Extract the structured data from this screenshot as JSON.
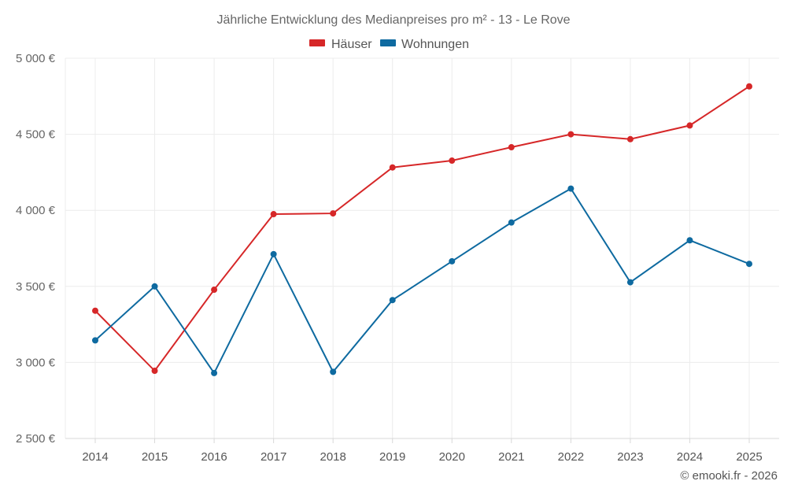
{
  "chart_data": {
    "type": "line",
    "title": "Jährliche Entwicklung des Medianpreises pro m² - 13 - Le Rove",
    "categories": [
      "2014",
      "2015",
      "2016",
      "2017",
      "2018",
      "2019",
      "2020",
      "2021",
      "2022",
      "2023",
      "2024",
      "2025"
    ],
    "series": [
      {
        "name": "Häuser",
        "color": "#d62728",
        "values": [
          3340,
          2945,
          3478,
          3975,
          3980,
          4282,
          4327,
          4415,
          4500,
          4468,
          4558,
          4815
        ]
      },
      {
        "name": "Wohnungen",
        "color": "#0e6aa0",
        "values": [
          3145,
          3500,
          2930,
          3712,
          2938,
          3410,
          3665,
          3920,
          4143,
          3527,
          3803,
          3648
        ]
      }
    ],
    "ylim": [
      2500,
      5000
    ],
    "yticks": [
      2500,
      3000,
      3500,
      4000,
      4500,
      5000
    ],
    "ytick_labels": [
      "2 500 €",
      "3 000 €",
      "3 500 €",
      "4 000 €",
      "4 500 €",
      "5 000 €"
    ],
    "grid": true,
    "legend": "top-center",
    "credit": "© emooki.fr - 2026"
  }
}
